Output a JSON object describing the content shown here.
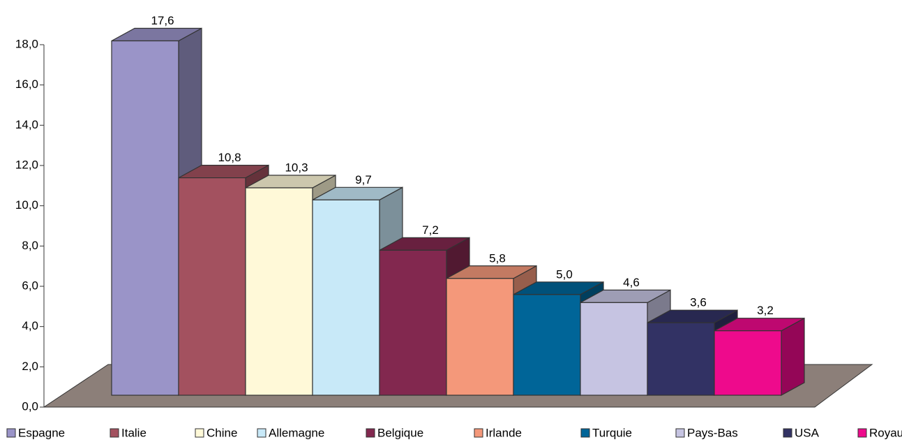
{
  "chart_data": {
    "type": "bar3d",
    "ylim": [
      0,
      18
    ],
    "yticks": [
      {
        "value": 0,
        "label": "0,0"
      },
      {
        "value": 2,
        "label": "2,0"
      },
      {
        "value": 4,
        "label": "4,0"
      },
      {
        "value": 6,
        "label": "6,0"
      },
      {
        "value": 8,
        "label": "8,0"
      },
      {
        "value": 10,
        "label": "10,0"
      },
      {
        "value": 12,
        "label": "12,0"
      },
      {
        "value": 14,
        "label": "14,0"
      },
      {
        "value": 16,
        "label": "16,0"
      },
      {
        "value": 18,
        "label": "18,0"
      }
    ],
    "series": [
      {
        "name": "Espagne",
        "color": "#9a94c8",
        "values": [
          17.6
        ],
        "value_labels": [
          "17,6"
        ]
      },
      {
        "name": "Italie",
        "color": "#a3515f",
        "values": [
          10.8
        ],
        "value_labels": [
          "10,8"
        ]
      },
      {
        "name": "Chine",
        "color": "#fff9d8",
        "values": [
          10.3
        ],
        "value_labels": [
          "10,3"
        ]
      },
      {
        "name": "Allemagne",
        "color": "#c8e9f8",
        "values": [
          9.7
        ],
        "value_labels": [
          "9,7"
        ]
      },
      {
        "name": "Belgique",
        "color": "#82284f",
        "values": [
          7.2
        ],
        "value_labels": [
          "7,2"
        ]
      },
      {
        "name": "Irlande",
        "color": "#f4987a",
        "values": [
          5.8
        ],
        "value_labels": [
          "5,8"
        ]
      },
      {
        "name": "Turquie",
        "color": "#006598",
        "values": [
          5.0
        ],
        "value_labels": [
          "5,0"
        ]
      },
      {
        "name": "Pays-Bas",
        "color": "#c6c4e2",
        "values": [
          4.6
        ],
        "value_labels": [
          "4,6"
        ]
      },
      {
        "name": "USA",
        "color": "#323264",
        "values": [
          3.6
        ],
        "value_labels": [
          "3,6"
        ]
      },
      {
        "name": "Royaume-Uni",
        "color": "#ee0a8c",
        "values": [
          3.2
        ],
        "value_labels": [
          "3,2"
        ]
      }
    ]
  }
}
